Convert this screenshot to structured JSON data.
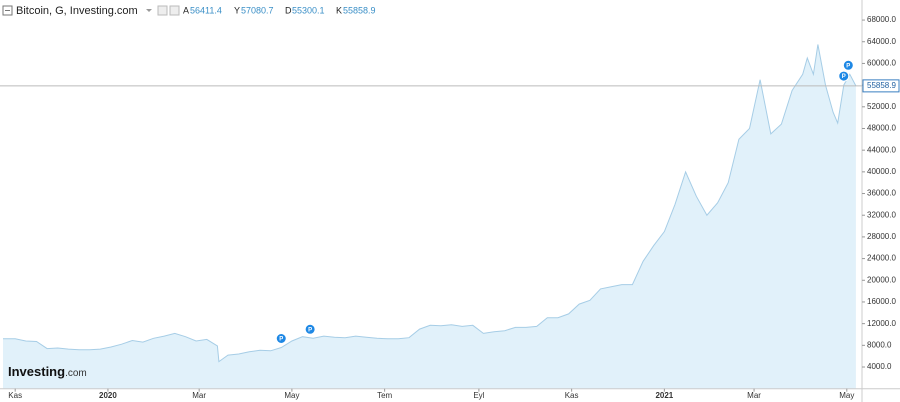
{
  "chart_data": {
    "type": "area",
    "title": "Bitcoin, G, Investing.com",
    "ohlc": [
      {
        "label": "A",
        "value": "56411.4"
      },
      {
        "label": "Y",
        "value": "57080.7"
      },
      {
        "label": "D",
        "value": "55300.1"
      },
      {
        "label": "K",
        "value": "55858.9"
      }
    ],
    "last_price": {
      "value": 55858.9,
      "label": "55858.9"
    },
    "logo": {
      "brand": "Investing",
      "suffix": ".com"
    },
    "x": [
      -8,
      0,
      7,
      14,
      21,
      28,
      35,
      42,
      49,
      56,
      63,
      70,
      77,
      84,
      91,
      98,
      105,
      112,
      119,
      126,
      133,
      134,
      140,
      147,
      154,
      161,
      168,
      175,
      182,
      189,
      196,
      203,
      210,
      217,
      224,
      231,
      238,
      245,
      252,
      259,
      266,
      273,
      280,
      287,
      294,
      301,
      308,
      315,
      322,
      329,
      336,
      343,
      350,
      357,
      364,
      371,
      378,
      385,
      392,
      399,
      406,
      413,
      420,
      427,
      434,
      441,
      448,
      455,
      462,
      469,
      476,
      483,
      490,
      497,
      504,
      511,
      518,
      521,
      525,
      528,
      533,
      538,
      541,
      545,
      549,
      553
    ],
    "series": [
      {
        "name": "Bitcoin",
        "color": "#a6cde6",
        "values": [
          9200,
          9200,
          8800,
          8700,
          7400,
          7500,
          7300,
          7200,
          7200,
          7300,
          7700,
          8200,
          8900,
          8600,
          9300,
          9700,
          10200,
          9600,
          8800,
          9100,
          7900,
          5000,
          6200,
          6400,
          6800,
          7100,
          7000,
          7600,
          8800,
          9600,
          9300,
          9700,
          9500,
          9400,
          9700,
          9500,
          9300,
          9200,
          9200,
          9400,
          11000,
          11700,
          11600,
          11800,
          11500,
          11700,
          10200,
          10500,
          10700,
          11300,
          11300,
          11500,
          13100,
          13100,
          13800,
          15600,
          16300,
          18400,
          18800,
          19200,
          19200,
          23500,
          26400,
          29000,
          34000,
          40000,
          35500,
          32000,
          34300,
          38000,
          46000,
          48000,
          57000,
          47000,
          48800,
          55000,
          58000,
          61000,
          58000,
          63500,
          56000,
          51000,
          49000,
          56000,
          58000,
          55858.9
        ]
      }
    ],
    "events": [
      {
        "x": 175,
        "label": "P"
      },
      {
        "x": 194,
        "label": "P"
      },
      {
        "x": 545,
        "label": "P"
      },
      {
        "x": 548,
        "label": "P"
      }
    ],
    "xlim": [
      -10,
      557
    ],
    "xticks": [
      {
        "value": 0,
        "label": "Kas"
      },
      {
        "value": 61,
        "label": "2020"
      },
      {
        "value": 121,
        "label": "Mar"
      },
      {
        "value": 182,
        "label": "May"
      },
      {
        "value": 243,
        "label": "Tem"
      },
      {
        "value": 305,
        "label": "Eyl"
      },
      {
        "value": 366,
        "label": "Kas"
      },
      {
        "value": 427,
        "label": "2021"
      },
      {
        "value": 486,
        "label": "Mar"
      },
      {
        "value": 547,
        "label": "May"
      }
    ],
    "ylim": [
      0,
      71700
    ],
    "yticks": [
      {
        "value": 4000,
        "label": "4000.0"
      },
      {
        "value": 8000,
        "label": "8000.0"
      },
      {
        "value": 12000,
        "label": "12000.0"
      },
      {
        "value": 16000,
        "label": "16000.0"
      },
      {
        "value": 20000,
        "label": "20000.0"
      },
      {
        "value": 24000,
        "label": "24000.0"
      },
      {
        "value": 28000,
        "label": "28000.0"
      },
      {
        "value": 32000,
        "label": "32000.0"
      },
      {
        "value": 36000,
        "label": "36000.0"
      },
      {
        "value": 40000,
        "label": "40000.0"
      },
      {
        "value": 44000,
        "label": "44000.0"
      },
      {
        "value": 48000,
        "label": "48000.0"
      },
      {
        "value": 52000,
        "label": "52000.0"
      },
      {
        "value": 56000,
        "label": "56000.0"
      },
      {
        "value": 60000,
        "label": "60000.0"
      },
      {
        "value": 64000,
        "label": "64000.0"
      },
      {
        "value": 68000,
        "label": "68000.0"
      }
    ]
  }
}
